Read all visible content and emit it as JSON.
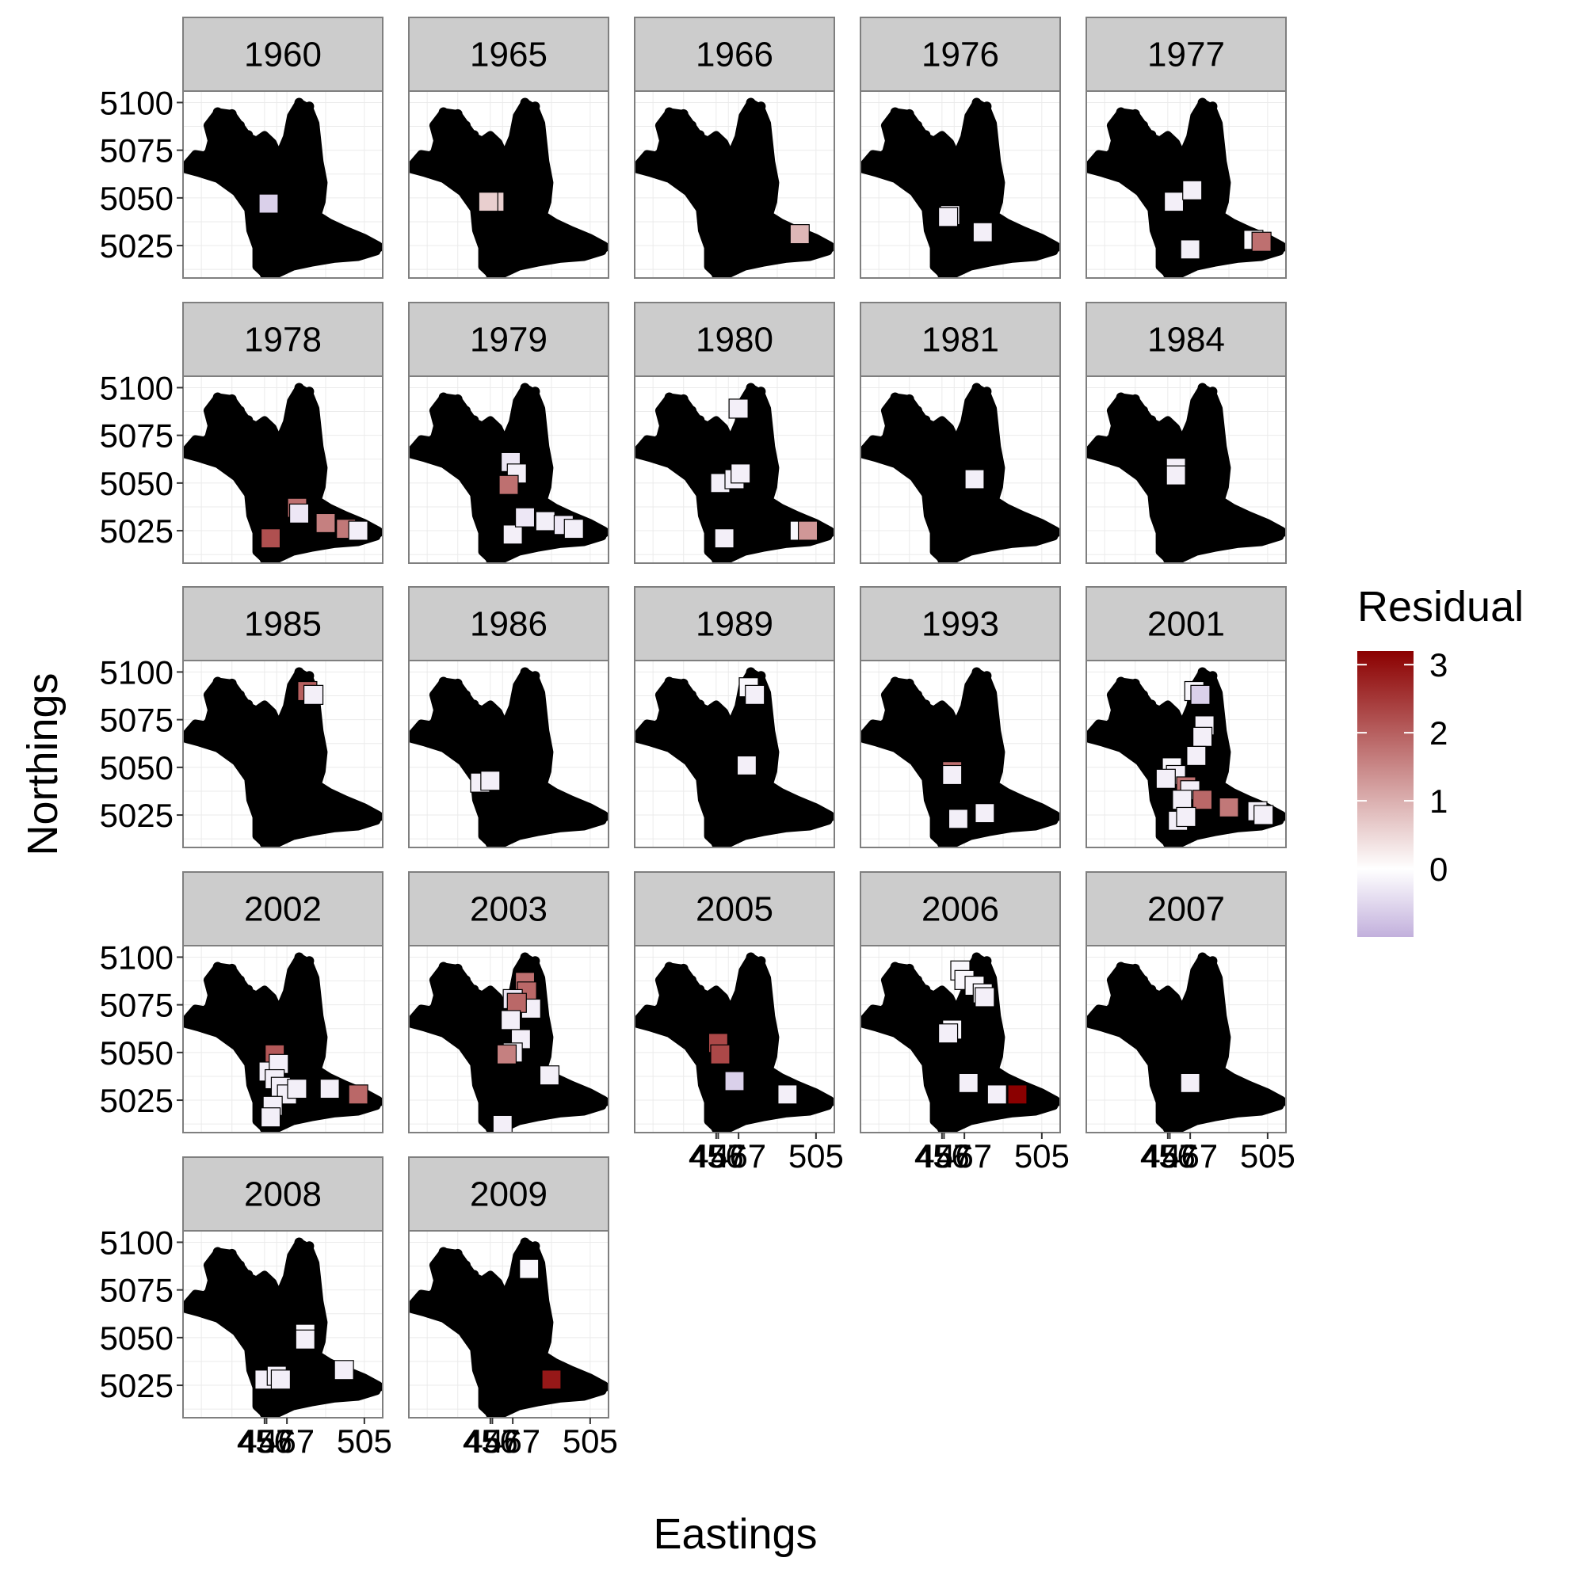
{
  "chart_data": {
    "type": "scatter",
    "xlabel": "Eastings",
    "ylabel": "Northings",
    "x_ticks": [
      456,
      457,
      467,
      505
    ],
    "y_ticks": [
      5025,
      5050,
      5075,
      5100
    ],
    "xlim": [
      416,
      514
    ],
    "ylim": [
      5008,
      5106
    ],
    "grid": true,
    "legend": {
      "title": "Residual",
      "position": "right",
      "ticks": [
        0,
        1,
        2,
        3
      ],
      "min": -1,
      "max": 3.2,
      "colors": {
        "low": "#c2b0dc",
        "mid": "#ffffff",
        "high": "#8b0000"
      }
    },
    "background_map_color": "#000000",
    "panels": [
      {
        "label": "1960",
        "points": [
          {
            "x": 458,
            "y": 5047,
            "r": -0.6
          }
        ]
      },
      {
        "label": "1965",
        "points": [
          {
            "x": 458,
            "y": 5048,
            "r": 0.6
          },
          {
            "x": 455,
            "y": 5048,
            "r": 0.6
          }
        ]
      },
      {
        "label": "1966",
        "points": [
          {
            "x": 497,
            "y": 5031,
            "r": 0.9
          }
        ]
      },
      {
        "label": "1976",
        "points": [
          {
            "x": 460,
            "y": 5041,
            "r": -0.2
          },
          {
            "x": 459,
            "y": 5040,
            "r": -0.2
          },
          {
            "x": 476,
            "y": 5032,
            "r": -0.2
          }
        ]
      },
      {
        "label": "1977",
        "points": [
          {
            "x": 459,
            "y": 5048,
            "r": -0.2
          },
          {
            "x": 468,
            "y": 5054,
            "r": -0.2
          },
          {
            "x": 467,
            "y": 5023,
            "r": -0.2
          },
          {
            "x": 498,
            "y": 5028,
            "r": -0.1
          },
          {
            "x": 502,
            "y": 5027,
            "r": 1.8
          }
        ]
      },
      {
        "label": "1978",
        "points": [
          {
            "x": 459,
            "y": 5021,
            "r": 2.2
          },
          {
            "x": 472,
            "y": 5037,
            "r": 1.8
          },
          {
            "x": 473,
            "y": 5034,
            "r": -0.3
          },
          {
            "x": 486,
            "y": 5029,
            "r": 1.6
          },
          {
            "x": 496,
            "y": 5026,
            "r": 1.7
          },
          {
            "x": 502,
            "y": 5025,
            "r": -0.2
          }
        ]
      },
      {
        "label": "1979",
        "points": [
          {
            "x": 466,
            "y": 5061,
            "r": -0.3
          },
          {
            "x": 469,
            "y": 5055,
            "r": -0.2
          },
          {
            "x": 465,
            "y": 5049,
            "r": 1.8
          },
          {
            "x": 467,
            "y": 5023,
            "r": -0.2
          },
          {
            "x": 473,
            "y": 5032,
            "r": -0.3
          },
          {
            "x": 483,
            "y": 5030,
            "r": -0.2
          },
          {
            "x": 492,
            "y": 5028,
            "r": -0.3
          },
          {
            "x": 497,
            "y": 5026,
            "r": -0.2
          }
        ]
      },
      {
        "label": "1980",
        "points": [
          {
            "x": 467,
            "y": 5089,
            "r": -0.2
          },
          {
            "x": 458,
            "y": 5050,
            "r": -0.2
          },
          {
            "x": 465,
            "y": 5052,
            "r": -0.2
          },
          {
            "x": 468,
            "y": 5055,
            "r": -0.2
          },
          {
            "x": 460,
            "y": 5021,
            "r": -0.2
          },
          {
            "x": 497,
            "y": 5025,
            "r": -0.1
          },
          {
            "x": 501,
            "y": 5025,
            "r": 1.3
          }
        ]
      },
      {
        "label": "1981",
        "points": [
          {
            "x": 472,
            "y": 5052,
            "r": -0.2
          }
        ]
      },
      {
        "label": "1984",
        "points": [
          {
            "x": 460,
            "y": 5058,
            "r": -0.2
          },
          {
            "x": 460,
            "y": 5054,
            "r": -0.2
          }
        ]
      },
      {
        "label": "1985",
        "points": [
          {
            "x": 477,
            "y": 5090,
            "r": 2.0
          },
          {
            "x": 480,
            "y": 5088,
            "r": -0.2
          }
        ]
      },
      {
        "label": "1986",
        "points": [
          {
            "x": 451,
            "y": 5042,
            "r": -0.2
          },
          {
            "x": 456,
            "y": 5043,
            "r": -0.2
          }
        ]
      },
      {
        "label": "1989",
        "points": [
          {
            "x": 472,
            "y": 5092,
            "r": -0.1
          },
          {
            "x": 475,
            "y": 5088,
            "r": -0.2
          },
          {
            "x": 471,
            "y": 5051,
            "r": -0.2
          }
        ]
      },
      {
        "label": "1993",
        "points": [
          {
            "x": 461,
            "y": 5048,
            "r": 1.8
          },
          {
            "x": 461,
            "y": 5046,
            "r": -0.2
          },
          {
            "x": 464,
            "y": 5023,
            "r": -0.2
          },
          {
            "x": 477,
            "y": 5026,
            "r": -0.2
          }
        ]
      },
      {
        "label": "2001",
        "points": [
          {
            "x": 469,
            "y": 5090,
            "r": -0.1
          },
          {
            "x": 472,
            "y": 5088,
            "r": -0.6
          },
          {
            "x": 474,
            "y": 5072,
            "r": -0.2
          },
          {
            "x": 473,
            "y": 5066,
            "r": -0.2
          },
          {
            "x": 470,
            "y": 5056,
            "r": -0.2
          },
          {
            "x": 458,
            "y": 5050,
            "r": -0.1
          },
          {
            "x": 460,
            "y": 5046,
            "r": -0.2
          },
          {
            "x": 455,
            "y": 5044,
            "r": -0.2
          },
          {
            "x": 465,
            "y": 5040,
            "r": 1.8
          },
          {
            "x": 467,
            "y": 5038,
            "r": -0.2
          },
          {
            "x": 473,
            "y": 5033,
            "r": 1.9
          },
          {
            "x": 463,
            "y": 5033,
            "r": -0.2
          },
          {
            "x": 461,
            "y": 5022,
            "r": -0.2
          },
          {
            "x": 465,
            "y": 5024,
            "r": -0.2
          },
          {
            "x": 486,
            "y": 5029,
            "r": 1.7
          },
          {
            "x": 500,
            "y": 5027,
            "r": -0.2
          },
          {
            "x": 503,
            "y": 5025,
            "r": -0.2
          }
        ]
      },
      {
        "label": "2002",
        "points": [
          {
            "x": 461,
            "y": 5049,
            "r": 2.1
          },
          {
            "x": 458,
            "y": 5040,
            "r": -0.2
          },
          {
            "x": 463,
            "y": 5044,
            "r": -0.2
          },
          {
            "x": 461,
            "y": 5036,
            "r": -0.2
          },
          {
            "x": 464,
            "y": 5032,
            "r": -0.2
          },
          {
            "x": 467,
            "y": 5028,
            "r": -0.2
          },
          {
            "x": 472,
            "y": 5031,
            "r": -0.2
          },
          {
            "x": 460,
            "y": 5022,
            "r": -0.2
          },
          {
            "x": 459,
            "y": 5016,
            "r": -0.2
          },
          {
            "x": 488,
            "y": 5031,
            "r": -0.2
          },
          {
            "x": 502,
            "y": 5028,
            "r": 1.9
          }
        ]
      },
      {
        "label": "2003",
        "points": [
          {
            "x": 473,
            "y": 5087,
            "r": 1.8
          },
          {
            "x": 474,
            "y": 5082,
            "r": 1.9
          },
          {
            "x": 476,
            "y": 5073,
            "r": -0.2
          },
          {
            "x": 467,
            "y": 5078,
            "r": -0.3
          },
          {
            "x": 469,
            "y": 5076,
            "r": 1.9
          },
          {
            "x": 466,
            "y": 5067,
            "r": -0.2
          },
          {
            "x": 471,
            "y": 5057,
            "r": -0.2
          },
          {
            "x": 467,
            "y": 5050,
            "r": -0.2
          },
          {
            "x": 464,
            "y": 5049,
            "r": 1.6
          },
          {
            "x": 485,
            "y": 5038,
            "r": -0.2
          },
          {
            "x": 462,
            "y": 5012,
            "r": -0.2
          }
        ]
      },
      {
        "label": "2005",
        "points": [
          {
            "x": 457,
            "y": 5055,
            "r": 2.3
          },
          {
            "x": 458,
            "y": 5049,
            "r": 2.3
          },
          {
            "x": 465,
            "y": 5035,
            "r": -0.6
          },
          {
            "x": 491,
            "y": 5028,
            "r": -0.2
          }
        ]
      },
      {
        "label": "2006",
        "points": [
          {
            "x": 465,
            "y": 5093,
            "r": -0.1
          },
          {
            "x": 467,
            "y": 5088,
            "r": -0.1
          },
          {
            "x": 472,
            "y": 5085,
            "r": -0.1
          },
          {
            "x": 476,
            "y": 5081,
            "r": -0.1
          },
          {
            "x": 477,
            "y": 5079,
            "r": -0.2
          },
          {
            "x": 461,
            "y": 5062,
            "r": -0.1
          },
          {
            "x": 459,
            "y": 5060,
            "r": -0.2
          },
          {
            "x": 469,
            "y": 5034,
            "r": -0.2
          },
          {
            "x": 483,
            "y": 5028,
            "r": -0.2
          },
          {
            "x": 493,
            "y": 5028,
            "r": 3.2
          }
        ]
      },
      {
        "label": "2007",
        "points": [
          {
            "x": 467,
            "y": 5034,
            "r": -0.2
          }
        ]
      },
      {
        "label": "2008",
        "points": [
          {
            "x": 456,
            "y": 5028,
            "r": -0.2
          },
          {
            "x": 462,
            "y": 5030,
            "r": -0.2
          },
          {
            "x": 464,
            "y": 5028,
            "r": -0.2
          },
          {
            "x": 476,
            "y": 5052,
            "r": -0.1
          },
          {
            "x": 476,
            "y": 5049,
            "r": -0.2
          },
          {
            "x": 495,
            "y": 5033,
            "r": -0.2
          }
        ]
      },
      {
        "label": "2009",
        "points": [
          {
            "x": 475,
            "y": 5086,
            "r": -0.1
          },
          {
            "x": 486,
            "y": 5028,
            "r": 2.9
          }
        ]
      }
    ]
  }
}
